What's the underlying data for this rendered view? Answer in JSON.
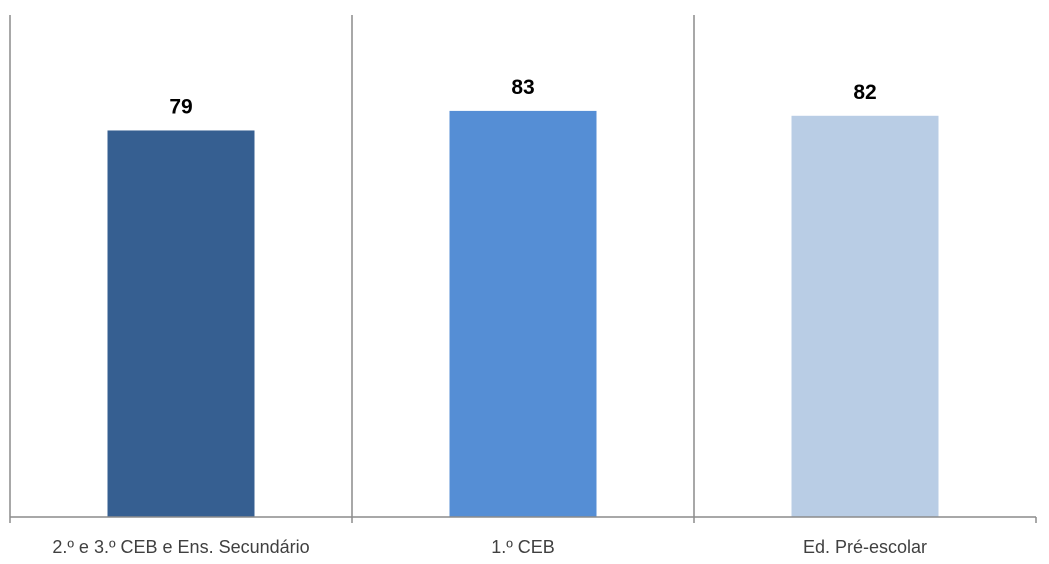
{
  "chart_data": {
    "type": "bar",
    "title": "",
    "xlabel": "",
    "ylabel": "",
    "categories": [
      "2.º e 3.º CEB e Ens. Secundário",
      "1.º CEB",
      "Ed. Pré-escolar"
    ],
    "values": [
      79,
      83,
      82
    ],
    "data_labels": [
      "79",
      "83",
      "82"
    ],
    "ylim": [
      0,
      100
    ],
    "grid": false,
    "legend": "none",
    "colors": [
      "#365F91",
      "#558ED5",
      "#B9CDE5"
    ],
    "axis_color": "#8C8C8C"
  }
}
